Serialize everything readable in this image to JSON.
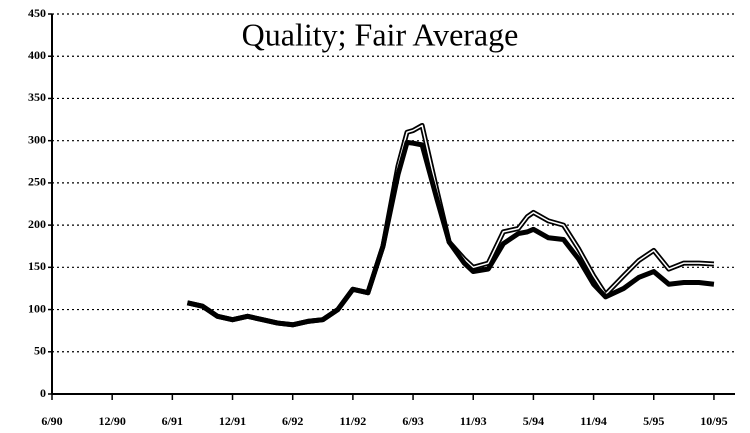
{
  "chart_data": {
    "type": "line",
    "title": "Quality; Fair Average",
    "x": [
      2.25,
      2.5,
      2.75,
      3.0,
      3.25,
      3.5,
      3.75,
      4.0,
      4.25,
      4.5,
      4.75,
      5.0,
      5.25,
      5.5,
      5.75,
      5.9,
      6.0,
      6.15,
      6.4,
      6.6,
      6.85,
      7.0,
      7.25,
      7.5,
      7.75,
      7.9,
      8.0,
      8.25,
      8.5,
      8.75,
      9.0,
      9.2,
      9.5,
      9.75,
      10.0,
      10.25,
      10.5,
      10.75,
      11.0
    ],
    "series": [
      {
        "color": "#000000",
        "values": [
          108,
          104,
          92,
          88,
          92,
          88,
          84,
          82,
          86,
          88,
          100,
          124,
          120,
          175,
          270,
          310,
          312,
          318,
          240,
          180,
          160,
          150,
          155,
          192,
          196,
          210,
          215,
          205,
          200,
          172,
          140,
          118,
          140,
          158,
          170,
          148,
          155,
          155,
          154
        ]
      },
      {
        "color": "#000000",
        "values": [
          108,
          104,
          92,
          88,
          92,
          88,
          84,
          82,
          86,
          88,
          100,
          124,
          120,
          175,
          260,
          298,
          297,
          295,
          230,
          180,
          155,
          145,
          148,
          178,
          190,
          192,
          195,
          185,
          183,
          160,
          130,
          115,
          125,
          138,
          145,
          130,
          132,
          132,
          130
        ]
      }
    ],
    "xlim": [
      0,
      11.35
    ],
    "ylim": [
      0,
      450
    ],
    "xticks": [
      {
        "value": 0,
        "label": "6/90"
      },
      {
        "value": 1,
        "label": "12/90"
      },
      {
        "value": 2,
        "label": "6/91"
      },
      {
        "value": 3,
        "label": "12/91"
      },
      {
        "value": 4,
        "label": "6/92"
      },
      {
        "value": 5,
        "label": "11/92"
      },
      {
        "value": 6,
        "label": "6/93"
      },
      {
        "value": 7,
        "label": "11/93"
      },
      {
        "value": 8,
        "label": "5/94"
      },
      {
        "value": 9,
        "label": "11/94"
      },
      {
        "value": 10,
        "label": "5/95"
      },
      {
        "value": 11,
        "label": "10/95"
      }
    ],
    "yticks": [
      0,
      50,
      100,
      150,
      200,
      250,
      300,
      350,
      400,
      450
    ],
    "grid": true
  }
}
